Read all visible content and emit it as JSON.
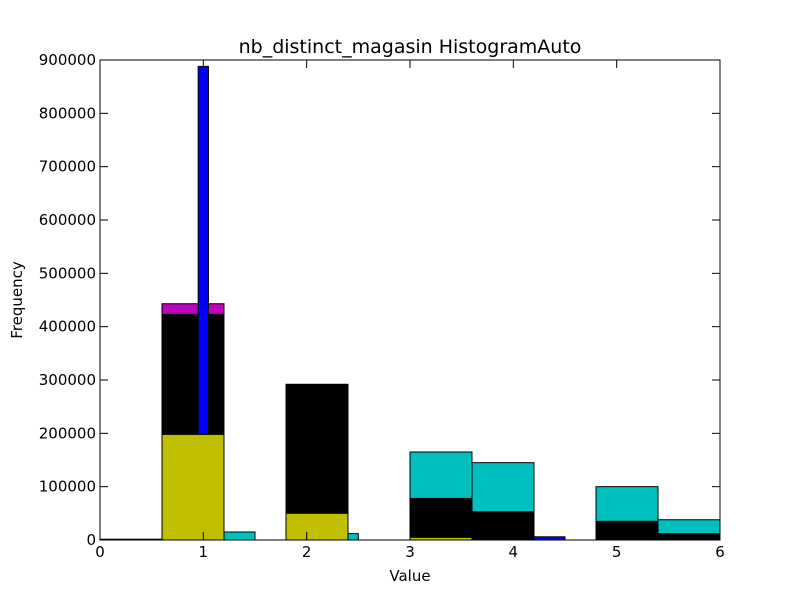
{
  "chart_data": {
    "type": "bar",
    "title": "nb_distinct_magasin HistogramAuto",
    "xlabel": "Value",
    "ylabel": "Frequency",
    "xlim": [
      0,
      6
    ],
    "ylim": [
      0,
      900000
    ],
    "xticks": [
      "0",
      "1",
      "2",
      "3",
      "4",
      "5",
      "6"
    ],
    "yticks": [
      "0",
      "100000",
      "200000",
      "300000",
      "400000",
      "500000",
      "600000",
      "700000",
      "800000",
      "900000"
    ],
    "grid": false,
    "legend": "none",
    "series": [
      {
        "color": "#00bfbf",
        "bins": [
          {
            "x0": 0.6,
            "x1": 1.2,
            "y": 0
          },
          {
            "x0": 1.2,
            "x1": 1.5,
            "y": 15000
          },
          {
            "x0": 2.4,
            "x1": 2.5,
            "y": 12000
          },
          {
            "x0": 3.0,
            "x1": 3.6,
            "y": 165000
          },
          {
            "x0": 3.6,
            "x1": 4.2,
            "y": 145000
          },
          {
            "x0": 4.8,
            "x1": 5.4,
            "y": 100000
          },
          {
            "x0": 5.4,
            "x1": 6.0,
            "y": 38000
          }
        ]
      },
      {
        "color": "#bf00bf",
        "bins": [
          {
            "x0": 0.6,
            "x1": 1.2,
            "y": 443000
          },
          {
            "x0": 1.8,
            "x1": 2.4,
            "y": 174000
          },
          {
            "x0": 3.0,
            "x1": 3.6,
            "y": 43000
          },
          {
            "x0": 3.6,
            "x1": 4.2,
            "y": 26000
          },
          {
            "x0": 4.8,
            "x1": 5.4,
            "y": 15000
          },
          {
            "x0": 5.4,
            "x1": 6.0,
            "y": 4000
          }
        ]
      },
      {
        "color": "#000000",
        "bins": [
          {
            "x0": 0.6,
            "x1": 1.2,
            "y": 423000
          },
          {
            "x0": 1.8,
            "x1": 2.4,
            "y": 292000
          },
          {
            "x0": 3.0,
            "x1": 3.6,
            "y": 78000
          },
          {
            "x0": 3.6,
            "x1": 4.2,
            "y": 53000
          },
          {
            "x0": 4.8,
            "x1": 5.4,
            "y": 35000
          },
          {
            "x0": 5.4,
            "x1": 6.0,
            "y": 12000
          }
        ]
      },
      {
        "color": "#0000ff",
        "bins": [
          {
            "x0": 0.95,
            "x1": 1.05,
            "y": 888000
          },
          {
            "x0": 4.2,
            "x1": 4.5,
            "y": 6000
          }
        ]
      },
      {
        "color": "#bfbf00",
        "bins": [
          {
            "x0": 0.0,
            "x1": 0.6,
            "y": 1500
          },
          {
            "x0": 0.6,
            "x1": 1.2,
            "y": 198000
          },
          {
            "x0": 1.8,
            "x1": 2.4,
            "y": 50000
          },
          {
            "x0": 3.0,
            "x1": 3.6,
            "y": 5000
          }
        ]
      }
    ]
  }
}
